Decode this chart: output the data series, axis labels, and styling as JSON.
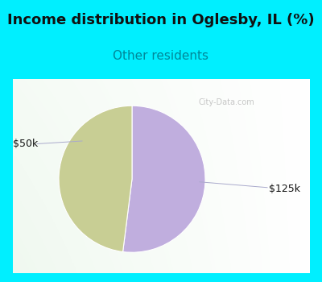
{
  "title": "Income distribution in Oglesby, IL (%)",
  "subtitle": "Other residents",
  "slices": [
    0.52,
    0.48
  ],
  "labels": [
    "$125k",
    "$50k"
  ],
  "colors": [
    "#c0aede",
    "#c8ce94"
  ],
  "bg_cyan": "#00efff",
  "bg_chart_topleft": "#d4f0dc",
  "bg_chart_center": "#f5fff8",
  "title_fontsize": 13,
  "subtitle_fontsize": 11,
  "title_color": "#111111",
  "subtitle_color": "#008899",
  "watermark": "City-Data.com",
  "startangle": 90,
  "label_fontsize": 9,
  "label_color": "#111111",
  "line_color": "#aaaacc"
}
